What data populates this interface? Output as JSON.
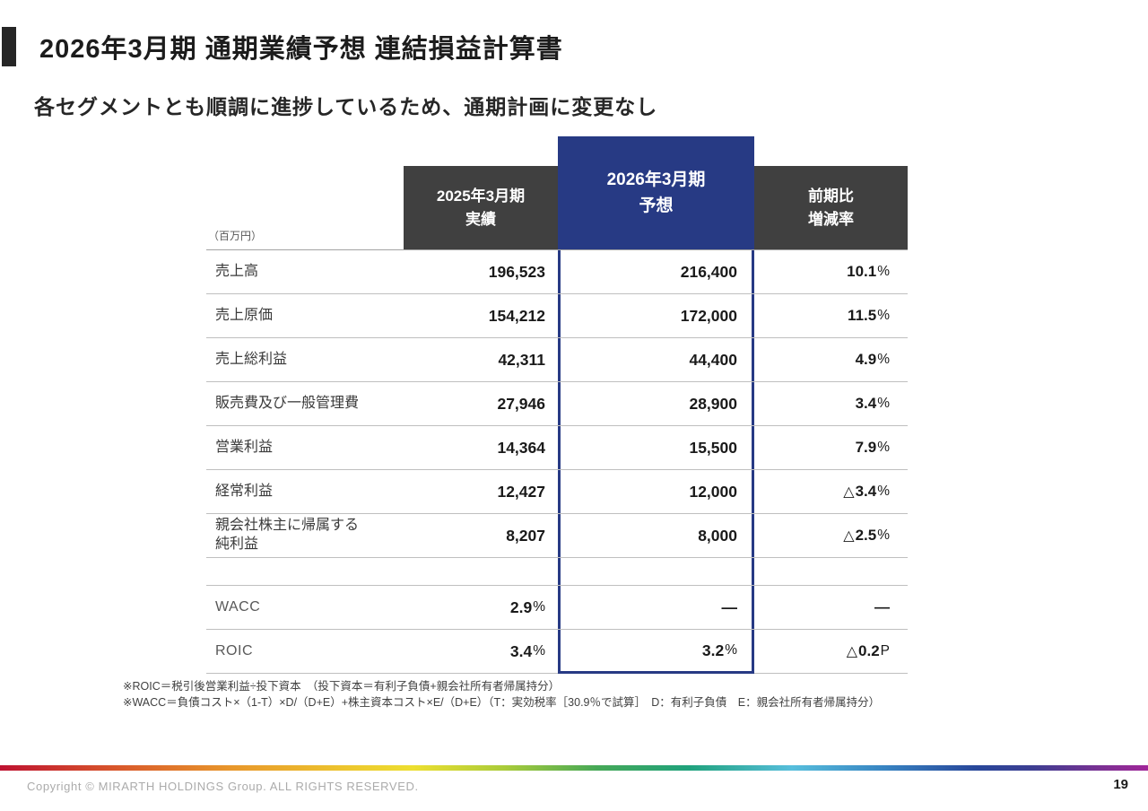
{
  "slide": {
    "title": "2026年3月期 通期業績予想 連結損益計算書",
    "subtitle": "各セグメントとも順調に進捗しているため、通期計画に変更なし"
  },
  "table": {
    "unit_label": "（百万円）",
    "columns": {
      "actual": {
        "line1": "2025年3月期",
        "line2": "実績"
      },
      "forecast": {
        "line1": "2026年3月期",
        "line2": "予想",
        "highlighted": true
      },
      "yoy": {
        "line1": "前期比",
        "line2": "増減率"
      }
    },
    "rows": [
      {
        "label": "売上高",
        "actual": "196,523",
        "forecast": "216,400",
        "yoy": "10.1%"
      },
      {
        "label": "売上原価",
        "actual": "154,212",
        "forecast": "172,000",
        "yoy": "11.5%"
      },
      {
        "label": "売上総利益",
        "actual": "42,311",
        "forecast": "44,400",
        "yoy": "4.9%"
      },
      {
        "label": "販売費及び一般管理費",
        "actual": "27,946",
        "forecast": "28,900",
        "yoy": "3.4%"
      },
      {
        "label": "営業利益",
        "actual": "14,364",
        "forecast": "15,500",
        "yoy": "7.9%"
      },
      {
        "label": "経常利益",
        "actual": "12,427",
        "forecast": "12,000",
        "yoy": "△3.4%"
      },
      {
        "label": "親会社株主に帰属する\n純利益",
        "actual": "8,207",
        "forecast": "8,000",
        "yoy": "△2.5%"
      },
      {
        "type": "spacer"
      },
      {
        "label": "WACC",
        "muted_label": true,
        "actual": "2.9%",
        "forecast": "—",
        "yoy": "—"
      },
      {
        "label": "ROIC",
        "muted_label": true,
        "actual": "3.4%",
        "forecast": "3.2%",
        "yoy": "△0.2P"
      }
    ],
    "footnotes": [
      "※ROIC＝税引後営業利益÷投下資本　（投下資本＝有利子負債+親会社所有者帰属持分）",
      "※WACC＝負債コスト×（1-T）×D/（D+E）+株主資本コスト×E/（D+E）（T：実効税率［30.9％で試算］　D：有利子負債　E：親会社所有者帰属持分）"
    ]
  },
  "footer": {
    "copyright": "Copyright © MIRARTH HOLDINGS Group. ALL RIGHTS RESERVED.",
    "page_number": "19"
  },
  "colors": {
    "accent_navy": "#273A84",
    "header_gray": "#404040",
    "divider_gray": "#BFBFBF",
    "rainbow_bar": [
      "#BE1231",
      "#E8962B",
      "#EDDF30",
      "#46A857",
      "#1FA27C",
      "#57BEDC",
      "#28479A",
      "#A12599"
    ]
  }
}
